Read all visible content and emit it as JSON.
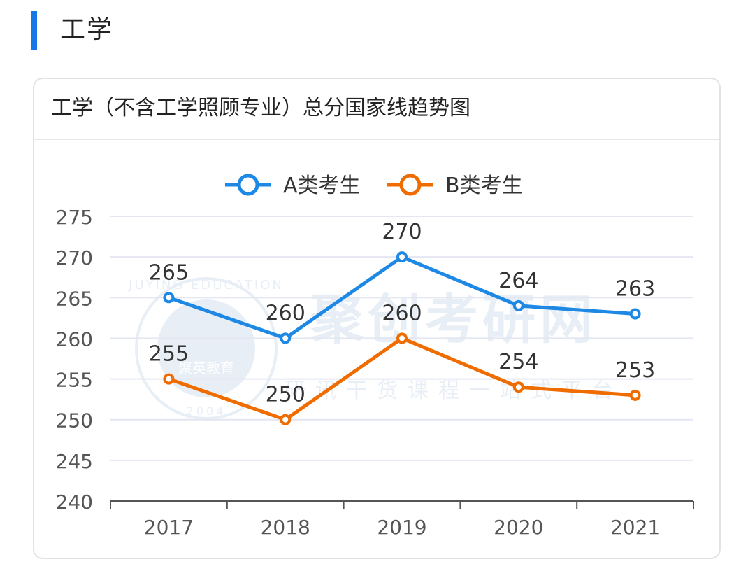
{
  "section": {
    "title": "工学"
  },
  "card": {
    "title": "工学（不含工学照顾专业）总分国家线趋势图"
  },
  "colors": {
    "accent": "#1677e6",
    "series_a": "#1e88e5",
    "series_b": "#ef6c00",
    "grid": "#e4e6f2",
    "axis": "#555555",
    "text": "#333333"
  },
  "watermark": {
    "brand": "聚创考研网",
    "slogan": "研讯干货课程一站式平台",
    "seal_text": "JUYING EDUCATION",
    "seal_center": "聚英教育",
    "seal_year": "2004"
  },
  "chart_data": {
    "type": "line",
    "categories": [
      "2017",
      "2018",
      "2019",
      "2020",
      "2021"
    ],
    "series": [
      {
        "name": "A类考生",
        "values": [
          265,
          260,
          270,
          264,
          263
        ],
        "color": "#1e88e5"
      },
      {
        "name": "B类考生",
        "values": [
          255,
          250,
          260,
          254,
          253
        ],
        "color": "#ef6c00"
      }
    ],
    "ylim": [
      240,
      275
    ],
    "yticks": [
      240,
      245,
      250,
      255,
      260,
      265,
      270,
      275
    ],
    "grid": true,
    "legend_position": "top-center",
    "data_labels": true
  }
}
